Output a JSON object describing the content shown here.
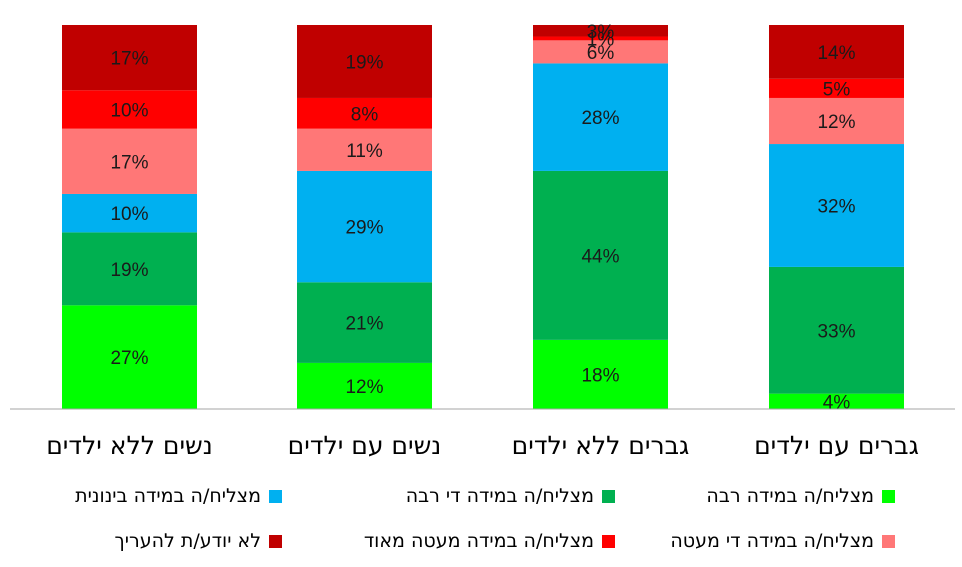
{
  "chart_data": {
    "type": "bar",
    "stacked": true,
    "categories": [
      "גברים עם ילדים",
      "גברים ללא ילדים",
      "נשים עם ילדים",
      "נשים ללא ילדים"
    ],
    "category_order": "right-to-left",
    "series": [
      {
        "name": "מצליח/ה במידה רבה",
        "color": "#00ff00",
        "values": [
          4,
          18,
          12,
          27
        ]
      },
      {
        "name": "מצליח/ה במידה די רבה",
        "color": "#00b050",
        "values": [
          33,
          44,
          21,
          19
        ]
      },
      {
        "name": "מצליח/ה במידה בינונית",
        "color": "#00b0f0",
        "values": [
          32,
          28,
          29,
          10
        ]
      },
      {
        "name": "מצליח/ה במידה די מעטה",
        "color": "#ff7777",
        "values": [
          12,
          6,
          11,
          17
        ]
      },
      {
        "name": "מצליח/ה במידה מעטה מאוד",
        "color": "#ff0000",
        "values": [
          5,
          1,
          8,
          10
        ]
      },
      {
        "name": "לא יודע/ת להעריך",
        "color": "#c00000",
        "values": [
          14,
          3,
          19,
          17
        ]
      }
    ],
    "value_format": "percent",
    "ylim": [
      0,
      100
    ],
    "grid": false,
    "legend_position": "bottom"
  }
}
